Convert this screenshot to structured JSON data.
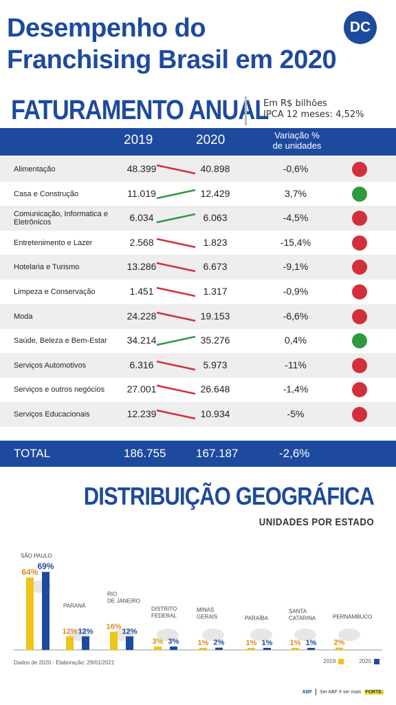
{
  "header": {
    "title_line1": "Desempenho do",
    "title_line2": "Franchising Brasil em 2020",
    "logo": "DC"
  },
  "section1": {
    "title": "FATURAMENTO ANUAL",
    "unit": "Em R$ bilhões",
    "ipca": "IPCA 12 meses: 4,52%"
  },
  "table": {
    "col_2019": "2019",
    "col_2020": "2020",
    "col_var_line1": "Variação %",
    "col_var_line2": "de unidades",
    "colors": {
      "up": "#2e9a3e",
      "down": "#d32f3a"
    },
    "rows": [
      {
        "category": "Alimentação",
        "v2019": "48.399",
        "v2020": "40.898",
        "variation": "-0,6%",
        "trend": "down"
      },
      {
        "category": "Casa e Construção",
        "v2019": "11.019",
        "v2020": "12.429",
        "variation": "3,7%",
        "trend": "up"
      },
      {
        "category": "Comunicação, Informatica e Eletrônicos",
        "v2019": "6.034",
        "v2020": "6.063",
        "variation": "-4,5%",
        "trend": "up"
      },
      {
        "category": "Entretenimento e Lazer",
        "v2019": "2.568",
        "v2020": "1.823",
        "variation": "-15,4%",
        "trend": "down"
      },
      {
        "category": "Hotelaria e Turismo",
        "v2019": "13.286",
        "v2020": "6.673",
        "variation": "-9,1%",
        "trend": "down"
      },
      {
        "category": "Limpeza e Conservação",
        "v2019": "1.451",
        "v2020": "1.317",
        "variation": "-0,9%",
        "trend": "down"
      },
      {
        "category": "Moda",
        "v2019": "24.228",
        "v2020": "19.153",
        "variation": "-6,6%",
        "trend": "down"
      },
      {
        "category": "Saúde, Beleza e Bem-Estar",
        "v2019": "34.214",
        "v2020": "35.276",
        "variation": "0,4%",
        "trend": "up"
      },
      {
        "category": "Serviços Automotivos",
        "v2019": "6.316",
        "v2020": "5.973",
        "variation": "-11%",
        "trend": "down"
      },
      {
        "category": "Serviços e outros negócios",
        "v2019": "27.001",
        "v2020": "26.648",
        "variation": "-1,4%",
        "trend": "down"
      },
      {
        "category": "Serviços Educacionais",
        "v2019": "12.239",
        "v2020": "10.934",
        "variation": "-5%",
        "trend": "down"
      }
    ],
    "total": {
      "label": "TOTAL",
      "v2019": "186.755",
      "v2020": "167.187",
      "variation": "-2,6%"
    }
  },
  "section2": {
    "title": "DISTRIBUIÇÃO GEOGRÁFICA",
    "subtitle": "UNIDADES POR ESTADO"
  },
  "chart_data": {
    "type": "bar",
    "title": "DISTRIBUIÇÃO GEOGRÁFICA",
    "subtitle": "UNIDADES POR ESTADO",
    "categories": [
      "SÃO PAULO",
      "PARANÁ",
      "RIO DE JANEIRO",
      "DISTRITO FEDERAL",
      "MINAS GERAIS",
      "PARAÍBA",
      "SANTA CATARINA",
      "PERNAMBUCO"
    ],
    "series": [
      {
        "name": "2019",
        "color": "#f0c419",
        "values": [
          64,
          12,
          16,
          3,
          1,
          1,
          1,
          2
        ],
        "labels": [
          "64%",
          "12%",
          "16%",
          "3%",
          "1%",
          "1%",
          "1%",
          "2%"
        ]
      },
      {
        "name": "2020",
        "color": "#1e4a9e",
        "values": [
          69,
          12,
          12,
          3,
          2,
          1,
          1,
          null
        ],
        "labels": [
          "69%",
          "12%",
          "12%",
          "3%",
          "2%",
          "1%",
          "1%",
          ""
        ]
      }
    ],
    "label_colors": {
      "2019": "#e08a1e",
      "2020": "#1e4a9e"
    },
    "ylim": [
      0,
      70
    ],
    "grid": false,
    "legend": "bottom-right"
  },
  "footer": {
    "note": "Dados de 2020 - Elaboração: 29/01/2021",
    "legend_2019": "2019",
    "legend_2020": "2020",
    "brand_mark": "ABF",
    "brand_text": "Ser ABF é ser mais",
    "brand_highlight": "FORTE."
  }
}
